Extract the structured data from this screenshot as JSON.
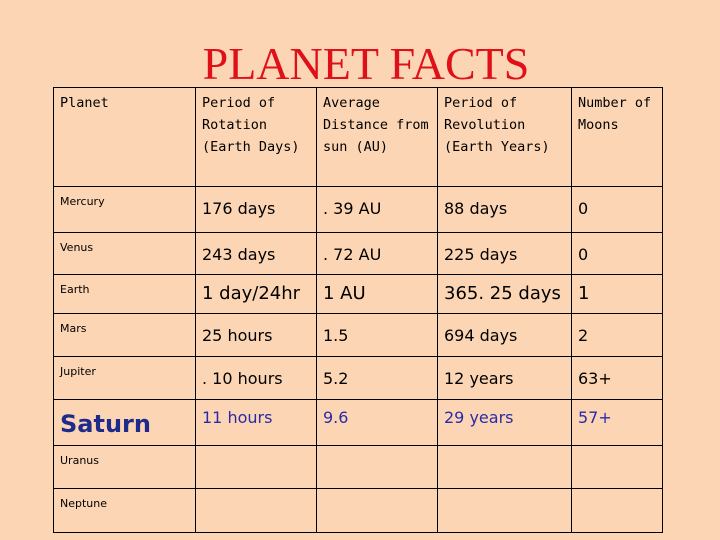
{
  "title": "PLANET FACTS",
  "table": {
    "header": [
      "Planet",
      "Period of Rotation (Earth Days)",
      "Average Distance from sun (AU)",
      "Period of Revolution (Earth Years)",
      "Number of Moons"
    ],
    "rows": [
      [
        "Mercury",
        "176 days",
        ". 39 AU",
        "88 days",
        "0"
      ],
      [
        "Venus",
        "243 days",
        ". 72 AU",
        "225 days",
        "0"
      ],
      [
        "Earth",
        "1 day/24hr",
        "1 AU",
        "365. 25 days",
        "1"
      ],
      [
        "Mars",
        "25 hours",
        "1.5",
        "694 days",
        "2"
      ],
      [
        "Jupiter",
        ". 10 hours",
        "5.2",
        "12 years",
        "63+"
      ],
      [
        "Saturn",
        "11 hours",
        "9.6",
        "29 years",
        "57+"
      ],
      [
        "Uranus"
      ],
      [
        "Neptune"
      ]
    ]
  }
}
